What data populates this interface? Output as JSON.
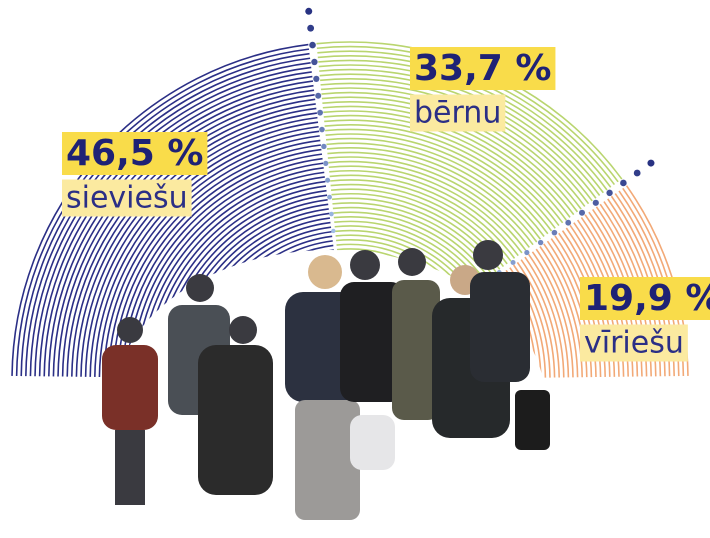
{
  "chart_data": {
    "type": "pie",
    "categories": [
      "sieviešu",
      "bērnu",
      "vīriešu"
    ],
    "values": [
      46.5,
      33.7,
      19.9
    ],
    "value_labels": [
      "46,5 %",
      "33,7 %",
      "19,9 %"
    ],
    "colors": [
      "#2b2f86",
      "#b9d56f",
      "#f2a977"
    ]
  }
}
